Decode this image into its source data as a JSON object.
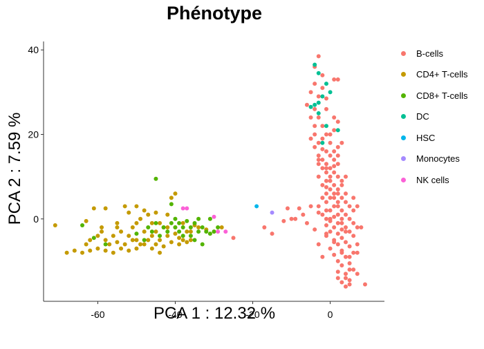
{
  "chart_data": {
    "type": "scatter",
    "title": "Phénotype",
    "xlabel": "PCA 1 : 12.32 %",
    "ylabel": "PCA 2 : 7.59 %",
    "xlim": [
      -74,
      14
    ],
    "ylim": [
      -19.5,
      42
    ],
    "x_ticks": [
      -60,
      -40,
      -20,
      0
    ],
    "x_tick_labels": [
      "-60",
      "-40",
      "-20",
      "0"
    ],
    "y_ticks": [
      0,
      20,
      40
    ],
    "y_tick_labels": [
      "0",
      "20",
      "40"
    ],
    "grid": false,
    "legend_position": "right",
    "series": [
      {
        "name": "B-cells",
        "color": "#F8766D",
        "points": [
          [
            -3,
            38.5
          ],
          [
            -4,
            36
          ],
          [
            -2,
            34
          ],
          [
            -4,
            32
          ],
          [
            1,
            33
          ],
          [
            2,
            33
          ],
          [
            -2,
            31
          ],
          [
            -5,
            30
          ],
          [
            -3,
            29
          ],
          [
            -1,
            28.5
          ],
          [
            -6,
            27
          ],
          [
            -4,
            26
          ],
          [
            -1,
            26
          ],
          [
            -5,
            24
          ],
          [
            -3,
            24
          ],
          [
            1,
            24
          ],
          [
            -4,
            22
          ],
          [
            -2,
            22
          ],
          [
            2,
            23
          ],
          [
            -4,
            20
          ],
          [
            -1,
            20
          ],
          [
            -5,
            19
          ],
          [
            -2,
            19
          ],
          [
            -3,
            18
          ],
          [
            0,
            18
          ],
          [
            2,
            17
          ],
          [
            -4,
            17
          ],
          [
            -1,
            16
          ],
          [
            1,
            16
          ],
          [
            -3,
            15
          ],
          [
            0,
            15
          ],
          [
            2,
            15
          ],
          [
            -2,
            14
          ],
          [
            1,
            14
          ],
          [
            -3,
            13
          ],
          [
            -1,
            13
          ],
          [
            2,
            13
          ],
          [
            0,
            12
          ],
          [
            -2,
            12
          ],
          [
            1,
            11
          ],
          [
            -1,
            11
          ],
          [
            -3,
            10
          ],
          [
            0,
            10
          ],
          [
            2,
            10
          ],
          [
            3,
            9
          ],
          [
            -1,
            9
          ],
          [
            1,
            8
          ],
          [
            -2,
            8
          ],
          [
            3,
            8
          ],
          [
            0,
            7
          ],
          [
            2,
            7
          ],
          [
            -1,
            6
          ],
          [
            4,
            6
          ],
          [
            1,
            6
          ],
          [
            -2,
            5
          ],
          [
            3,
            5
          ],
          [
            0,
            5
          ],
          [
            -1,
            4
          ],
          [
            2,
            4
          ],
          [
            4,
            4
          ],
          [
            1,
            3
          ],
          [
            -3,
            3
          ],
          [
            5,
            3
          ],
          [
            -1,
            2
          ],
          [
            3,
            2
          ],
          [
            0,
            2
          ],
          [
            6,
            2
          ],
          [
            -2,
            1
          ],
          [
            2,
            1
          ],
          [
            4,
            1
          ],
          [
            1,
            0.5
          ],
          [
            -1,
            0
          ],
          [
            3,
            0
          ],
          [
            5,
            0
          ],
          [
            0,
            -0.5
          ],
          [
            2,
            -1
          ],
          [
            6,
            -1
          ],
          [
            -1,
            -1.5
          ],
          [
            4,
            -2
          ],
          [
            1,
            -2
          ],
          [
            3,
            -2.5
          ],
          [
            7,
            -2
          ],
          [
            0,
            -3
          ],
          [
            2,
            -3.5
          ],
          [
            5,
            -3
          ],
          [
            -1,
            -4
          ],
          [
            3,
            -4.5
          ],
          [
            6,
            -4
          ],
          [
            1,
            -5
          ],
          [
            4,
            -5.5
          ],
          [
            2,
            -6
          ],
          [
            5,
            -6.5
          ],
          [
            7,
            -6
          ],
          [
            0,
            -7
          ],
          [
            3,
            -7.5
          ],
          [
            6,
            -8
          ],
          [
            1,
            -8.5
          ],
          [
            4,
            -9
          ],
          [
            2,
            -10
          ],
          [
            5,
            -10.5
          ],
          [
            3,
            -11
          ],
          [
            6,
            -12
          ],
          [
            4,
            -13
          ],
          [
            2,
            -14
          ],
          [
            5,
            -14.5
          ],
          [
            3,
            -15
          ],
          [
            4,
            -16
          ],
          [
            5,
            -15.5
          ],
          [
            9,
            -15.5
          ],
          [
            7,
            -13
          ],
          [
            -2,
            -9
          ],
          [
            -3,
            -6
          ],
          [
            -4,
            -2.5
          ],
          [
            -6,
            -1
          ],
          [
            -3,
            1.5
          ],
          [
            -5,
            3
          ],
          [
            -7,
            1
          ],
          [
            -8,
            2.5
          ],
          [
            -9,
            0
          ],
          [
            -10,
            0
          ],
          [
            -11,
            2.5
          ],
          [
            -12,
            -0.5
          ],
          [
            -15,
            -3.5
          ],
          [
            -17,
            -2
          ],
          [
            -25,
            -4.5
          ],
          [
            6,
            5
          ],
          [
            4,
            10
          ],
          [
            7,
            3
          ],
          [
            8,
            -2
          ],
          [
            7,
            -8
          ],
          [
            5,
            -12
          ],
          [
            -2,
            5
          ],
          [
            -1,
            7.5
          ],
          [
            1,
            12.5
          ],
          [
            0,
            20
          ],
          [
            3,
            18
          ],
          [
            -2,
            16.5
          ],
          [
            1,
            21
          ],
          [
            -3,
            14
          ],
          [
            2,
            -12.5
          ],
          [
            4,
            -14
          ],
          [
            3,
            -8
          ],
          [
            1,
            -5.5
          ],
          [
            -1,
            -3.5
          ],
          [
            0,
            0
          ],
          [
            2,
            3
          ],
          [
            1,
            5
          ],
          [
            0,
            9
          ],
          [
            -1,
            12
          ],
          [
            2,
            6
          ],
          [
            3,
            -1
          ],
          [
            4,
            -3
          ],
          [
            5,
            -9
          ]
        ]
      },
      {
        "name": "CD4+ T-cells",
        "color": "#C49A00",
        "points": [
          [
            -71,
            -1.5
          ],
          [
            -68,
            -8
          ],
          [
            -64,
            -8
          ],
          [
            -62,
            -7.5
          ],
          [
            -60,
            -7
          ],
          [
            -58,
            -7.5
          ],
          [
            -56,
            -8
          ],
          [
            -54,
            -7
          ],
          [
            -52,
            -7.5
          ],
          [
            -50,
            -7
          ],
          [
            -48,
            -6
          ],
          [
            -46,
            -7
          ],
          [
            -44,
            -8
          ],
          [
            -63,
            -0.5
          ],
          [
            -61,
            2.5
          ],
          [
            -59,
            -2
          ],
          [
            -58,
            2.5
          ],
          [
            -55,
            -1
          ],
          [
            -53,
            3
          ],
          [
            -52,
            1.5
          ],
          [
            -50,
            -1
          ],
          [
            -49,
            0
          ],
          [
            -48,
            2
          ],
          [
            -46,
            -1
          ],
          [
            -45,
            -3
          ],
          [
            -43,
            -2
          ],
          [
            -42,
            -4
          ],
          [
            -41,
            5
          ],
          [
            -40,
            -2
          ],
          [
            -39,
            -4.5
          ],
          [
            -38,
            -1
          ],
          [
            -37,
            -3
          ],
          [
            -36,
            -5
          ],
          [
            -35,
            -1.5
          ],
          [
            -56,
            -4
          ],
          [
            -54,
            -3
          ],
          [
            -52,
            -4
          ],
          [
            -50,
            -5
          ],
          [
            -48,
            -3
          ],
          [
            -46,
            -4
          ],
          [
            -44,
            -5
          ],
          [
            -42,
            -2
          ],
          [
            -40,
            -3.5
          ],
          [
            -38,
            -5
          ],
          [
            -60,
            -4
          ],
          [
            -58,
            -5
          ],
          [
            -62,
            -5
          ],
          [
            -57,
            -6
          ],
          [
            -55,
            -5.5
          ],
          [
            -53,
            -6
          ],
          [
            -51,
            -5
          ],
          [
            -49,
            -6
          ],
          [
            -47,
            -5
          ],
          [
            -45,
            -6
          ],
          [
            -43,
            -6.5
          ],
          [
            -41,
            -5.5
          ],
          [
            -39,
            -6
          ],
          [
            -37,
            -5.5
          ],
          [
            -40,
            6
          ],
          [
            -36,
            -3
          ],
          [
            -47,
            1
          ],
          [
            -44,
            -1
          ],
          [
            -42,
            1
          ],
          [
            -55,
            -2
          ],
          [
            -51,
            -2
          ],
          [
            -59,
            -3
          ],
          [
            -66,
            -7.5
          ],
          [
            -63,
            -6
          ],
          [
            -50,
            3
          ],
          [
            -45,
            1.5
          ],
          [
            -34,
            -2
          ],
          [
            -32,
            -2.5
          ],
          [
            -30,
            -3
          ],
          [
            -28,
            -2
          ]
        ]
      },
      {
        "name": "CD8+ T-cells",
        "color": "#53B400",
        "points": [
          [
            -45,
            9.5
          ],
          [
            -41,
            3.5
          ],
          [
            -64,
            -1.5
          ],
          [
            -61,
            -4.5
          ],
          [
            -58,
            -6
          ],
          [
            -50,
            -3.5
          ],
          [
            -47,
            -2
          ],
          [
            -45,
            -1
          ],
          [
            -44,
            -4
          ],
          [
            -42,
            -3
          ],
          [
            -41,
            -1
          ],
          [
            -40,
            -2
          ],
          [
            -39,
            -1
          ],
          [
            -38,
            -2
          ],
          [
            -37,
            -0.5
          ],
          [
            -36,
            -4
          ],
          [
            -35,
            -1
          ],
          [
            -34,
            -3
          ],
          [
            -33,
            -2
          ],
          [
            -32,
            -3
          ],
          [
            -31,
            0
          ],
          [
            -30,
            -3
          ],
          [
            -29,
            -2
          ],
          [
            -38,
            -4
          ],
          [
            -36,
            -2
          ],
          [
            -34,
            0
          ],
          [
            -33,
            -6
          ],
          [
            -40,
            0
          ],
          [
            -43,
            -2
          ],
          [
            -46,
            -3
          ],
          [
            -48,
            -5
          ],
          [
            -35,
            -5
          ],
          [
            -31,
            -3.5
          ],
          [
            -39,
            -3
          ]
        ]
      },
      {
        "name": "DC",
        "color": "#00C094",
        "points": [
          [
            -4,
            36.5
          ],
          [
            -3,
            34.5
          ],
          [
            -1,
            32
          ],
          [
            -2,
            29
          ],
          [
            0,
            30
          ],
          [
            -4,
            27
          ],
          [
            -5,
            26.5
          ],
          [
            -3,
            25
          ],
          [
            -1,
            22
          ],
          [
            2,
            21
          ],
          [
            -2,
            18
          ],
          [
            -3,
            27.5
          ]
        ]
      },
      {
        "name": "HSC",
        "color": "#00B6EB",
        "points": [
          [
            -19,
            3
          ]
        ]
      },
      {
        "name": "Monocytes",
        "color": "#A58AFF",
        "points": [
          [
            -15,
            1.5
          ]
        ]
      },
      {
        "name": "NK cells",
        "color": "#FB61D7",
        "points": [
          [
            -38,
            2.5
          ],
          [
            -37,
            2.5
          ],
          [
            -30,
            0.5
          ],
          [
            -29,
            -3
          ],
          [
            -27,
            -3
          ]
        ]
      }
    ]
  }
}
